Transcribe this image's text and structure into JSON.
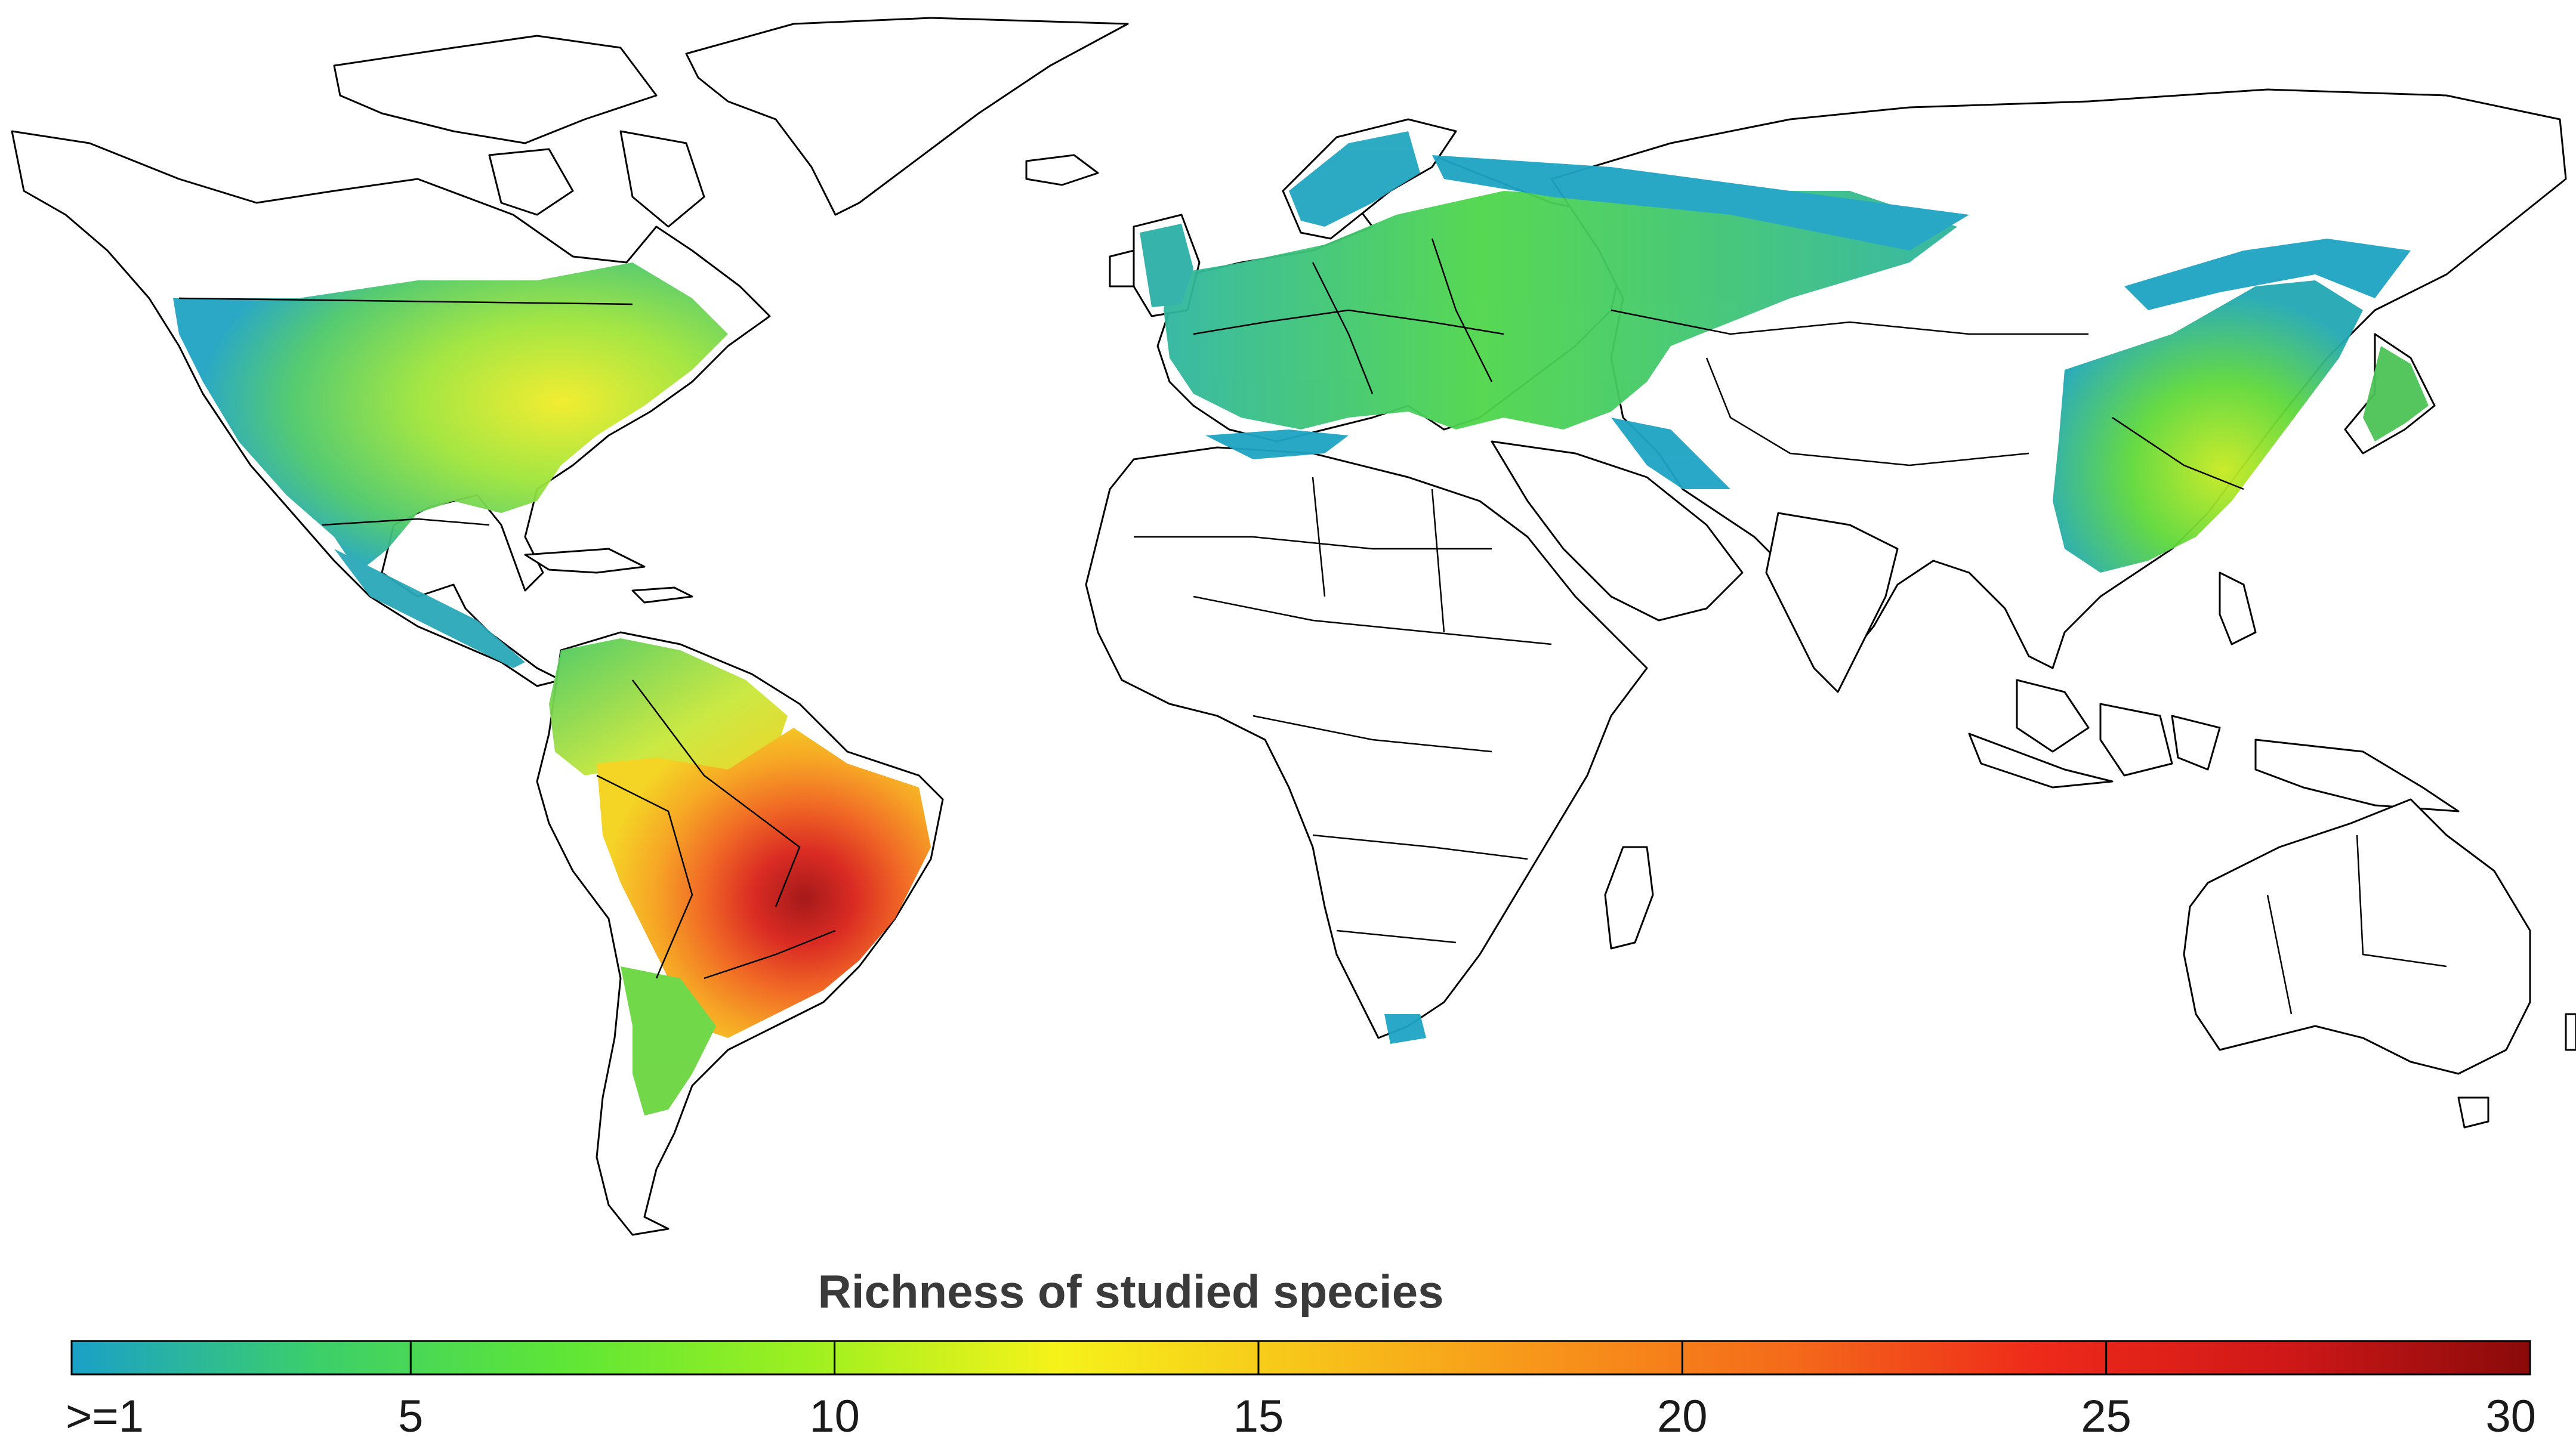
{
  "legend": {
    "title": "Richness of studied species",
    "min": 1,
    "max": 30,
    "tick_values": [
      1,
      5,
      10,
      15,
      20,
      25,
      30
    ],
    "tick_labels": [
      ">=1",
      "5",
      "10",
      "15",
      "20",
      "25",
      "30"
    ],
    "color_stops": [
      "#1aa0c8",
      "#3ccf6a",
      "#5ee636",
      "#9ef020",
      "#f5f21a",
      "#f7c51a",
      "#f7941a",
      "#f46a1a",
      "#ee2a1a",
      "#d01818",
      "#8a0a0a"
    ]
  }
}
